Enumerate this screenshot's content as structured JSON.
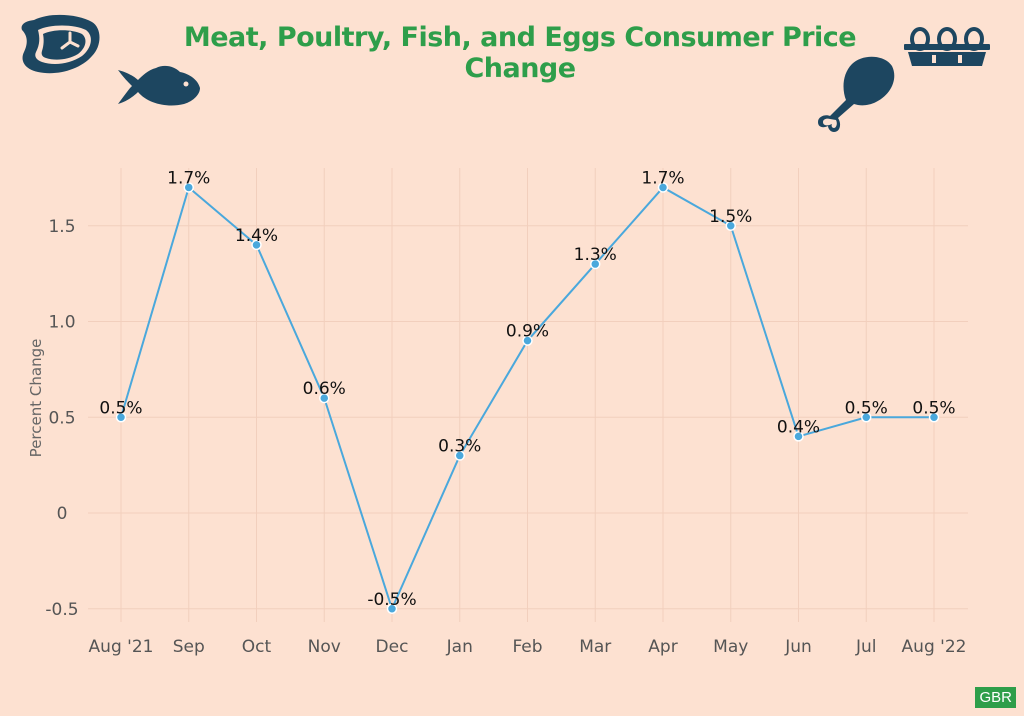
{
  "colors": {
    "background": "#fde1d1",
    "title": "#2e9e4a",
    "line": "#4aa8dc",
    "icon": "#1d4660",
    "grid": "#f2cfbd",
    "badge_bg": "#2e9e4a"
  },
  "icons": [
    "steak-icon",
    "fish-icon",
    "chicken-leg-icon",
    "egg-carton-icon"
  ],
  "badge": "GBR",
  "chart_data": {
    "type": "line",
    "title": "Meat, Poultry, Fish, and Eggs Consumer Price Change",
    "ylabel": "Percent Change",
    "xlabel": "",
    "ylim": [
      -0.55,
      1.8
    ],
    "yticks": [
      -0.5,
      0,
      0.5,
      1.0,
      1.5
    ],
    "ytick_labels": [
      "-0.5",
      "0",
      "0.5",
      "1.0",
      "1.5"
    ],
    "grid": true,
    "categories": [
      "Aug '21",
      "Sep",
      "Oct",
      "Nov",
      "Dec",
      "Jan",
      "Feb",
      "Mar",
      "Apr",
      "May",
      "Jun",
      "Jul",
      "Aug '22"
    ],
    "series": [
      {
        "values": [
          0.5,
          1.7,
          1.4,
          0.6,
          -0.5,
          0.3,
          0.9,
          1.3,
          1.7,
          1.5,
          0.4,
          0.5,
          0.5
        ],
        "labels": [
          "0.5%",
          "1.7%",
          "1.4%",
          "0.6%",
          "-0.5%",
          "0.3%",
          "0.9%",
          "1.3%",
          "1.7%",
          "1.5%",
          "0.4%",
          "0.5%",
          "0.5%"
        ]
      }
    ]
  }
}
